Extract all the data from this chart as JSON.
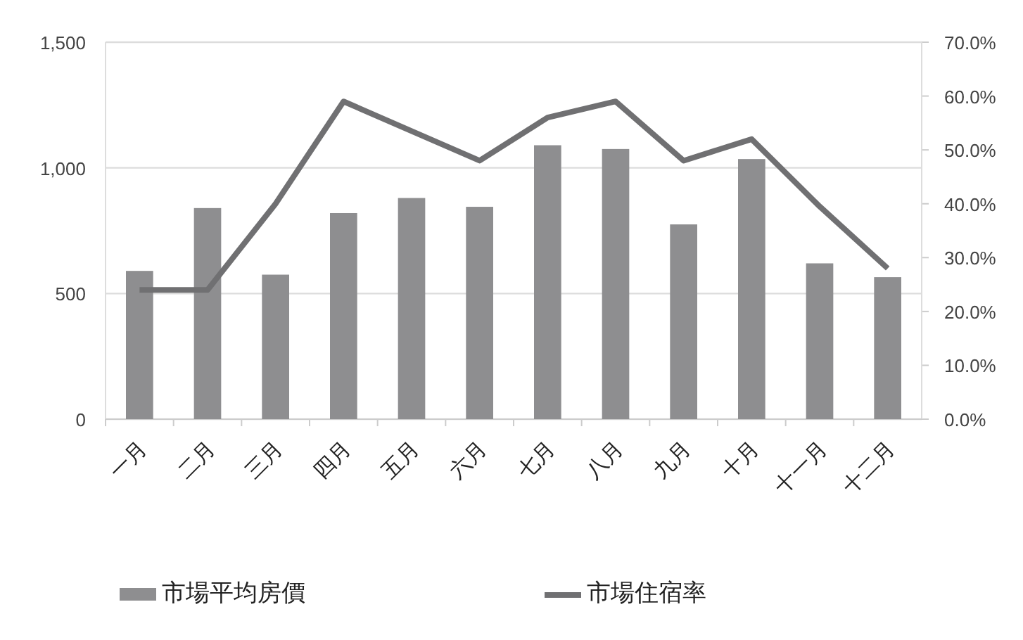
{
  "chart_data": {
    "type": "bar",
    "categories": [
      "一月",
      "二月",
      "三月",
      "四月",
      "五月",
      "六月",
      "七月",
      "八月",
      "九月",
      "十月",
      "十一月",
      "十二月"
    ],
    "series": [
      {
        "name": "市場平均房價",
        "color": "#8e8e90",
        "values": [
          590,
          840,
          575,
          820,
          880,
          845,
          1090,
          1075,
          775,
          1035,
          620,
          565
        ]
      },
      {
        "name": "市場住宿率",
        "type": "line",
        "axis": "y2",
        "color": "#707072",
        "values": [
          24,
          24,
          40,
          59,
          53.5,
          48,
          56,
          59,
          48,
          52,
          39.5,
          28
        ]
      }
    ],
    "ylim": [
      0,
      1500
    ],
    "yticks": [
      0,
      500,
      {
        "value": 1000,
        "label": "1,000"
      },
      {
        "value": 1500,
        "label": "1,500"
      }
    ],
    "y2lim": [
      0,
      70
    ],
    "y2ticks": [
      {
        "value": 0,
        "label": "0.0%"
      },
      {
        "value": 10,
        "label": "10.0%"
      },
      {
        "value": 20,
        "label": "20.0%"
      },
      {
        "value": 30,
        "label": "30.0%"
      },
      {
        "value": 40,
        "label": "40.0%"
      },
      {
        "value": 50,
        "label": "50.0%"
      },
      {
        "value": 60,
        "label": "60.0%"
      },
      {
        "value": 70,
        "label": "70.0%"
      }
    ],
    "grid": "y",
    "legend": "bottom",
    "marker": "none",
    "line_style": "solid"
  }
}
